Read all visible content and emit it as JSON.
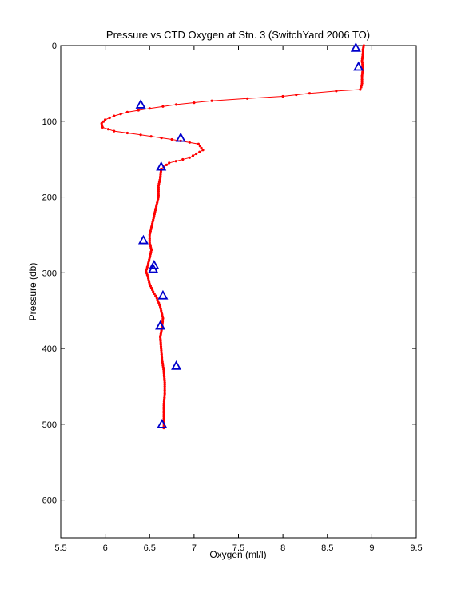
{
  "chart_data": {
    "type": "line",
    "title": "Pressure vs CTD Oxygen at Stn. 3 (SwitchYard 2006 TO)",
    "xlabel": "Oxygen (ml/l)",
    "ylabel": "Pressure (db)",
    "xlim": [
      5.5,
      9.5
    ],
    "ylim": [
      0,
      650
    ],
    "y_reversed": true,
    "x_ticks": [
      "5.5",
      "6",
      "6.5",
      "7",
      "7.5",
      "8",
      "8.5",
      "9",
      "9.5"
    ],
    "y_ticks": [
      "0",
      "100",
      "200",
      "300",
      "400",
      "500",
      "600"
    ],
    "grid": false,
    "series": [
      {
        "marker": "dot",
        "color": "#ff0000",
        "x": [
          8.91,
          8.9,
          8.9,
          8.89,
          8.9,
          8.89,
          8.89,
          8.88,
          8.87,
          8.6,
          8.3,
          8.0,
          7.6,
          7.2,
          6.8,
          6.5,
          6.25,
          6.1,
          6.0,
          5.96,
          5.97,
          6.1,
          6.4,
          6.75,
          7.05,
          7.1,
          6.95,
          6.72,
          6.63,
          6.62,
          6.6,
          6.6,
          6.57,
          6.54,
          6.52,
          6.5,
          6.5,
          6.52,
          6.5,
          6.48,
          6.46,
          6.48,
          6.5,
          6.54,
          6.58,
          6.62,
          6.65,
          6.64,
          6.62,
          6.63,
          6.64,
          6.66,
          6.67,
          6.67,
          6.66,
          6.66,
          6.66,
          6.66
        ],
        "y": [
          0,
          5,
          10,
          20,
          30,
          40,
          50,
          55,
          58,
          60,
          63,
          67,
          70,
          73,
          78,
          83,
          88,
          93,
          98,
          103,
          108,
          113,
          118,
          124,
          130,
          138,
          148,
          155,
          163,
          175,
          185,
          200,
          215,
          230,
          240,
          250,
          260,
          270,
          280,
          290,
          298,
          305,
          315,
          325,
          333,
          345,
          360,
          372,
          385,
          400,
          415,
          430,
          445,
          460,
          475,
          490,
          500,
          505
        ]
      },
      {
        "marker": "triangle",
        "color": "#0000cc",
        "x": [
          8.82,
          8.85,
          6.4,
          6.85,
          6.63,
          6.43,
          6.55,
          6.54,
          6.65,
          6.62,
          6.8,
          6.64
        ],
        "y": [
          3,
          28,
          78,
          122,
          160,
          257,
          290,
          295,
          330,
          370,
          423,
          500
        ]
      }
    ]
  }
}
